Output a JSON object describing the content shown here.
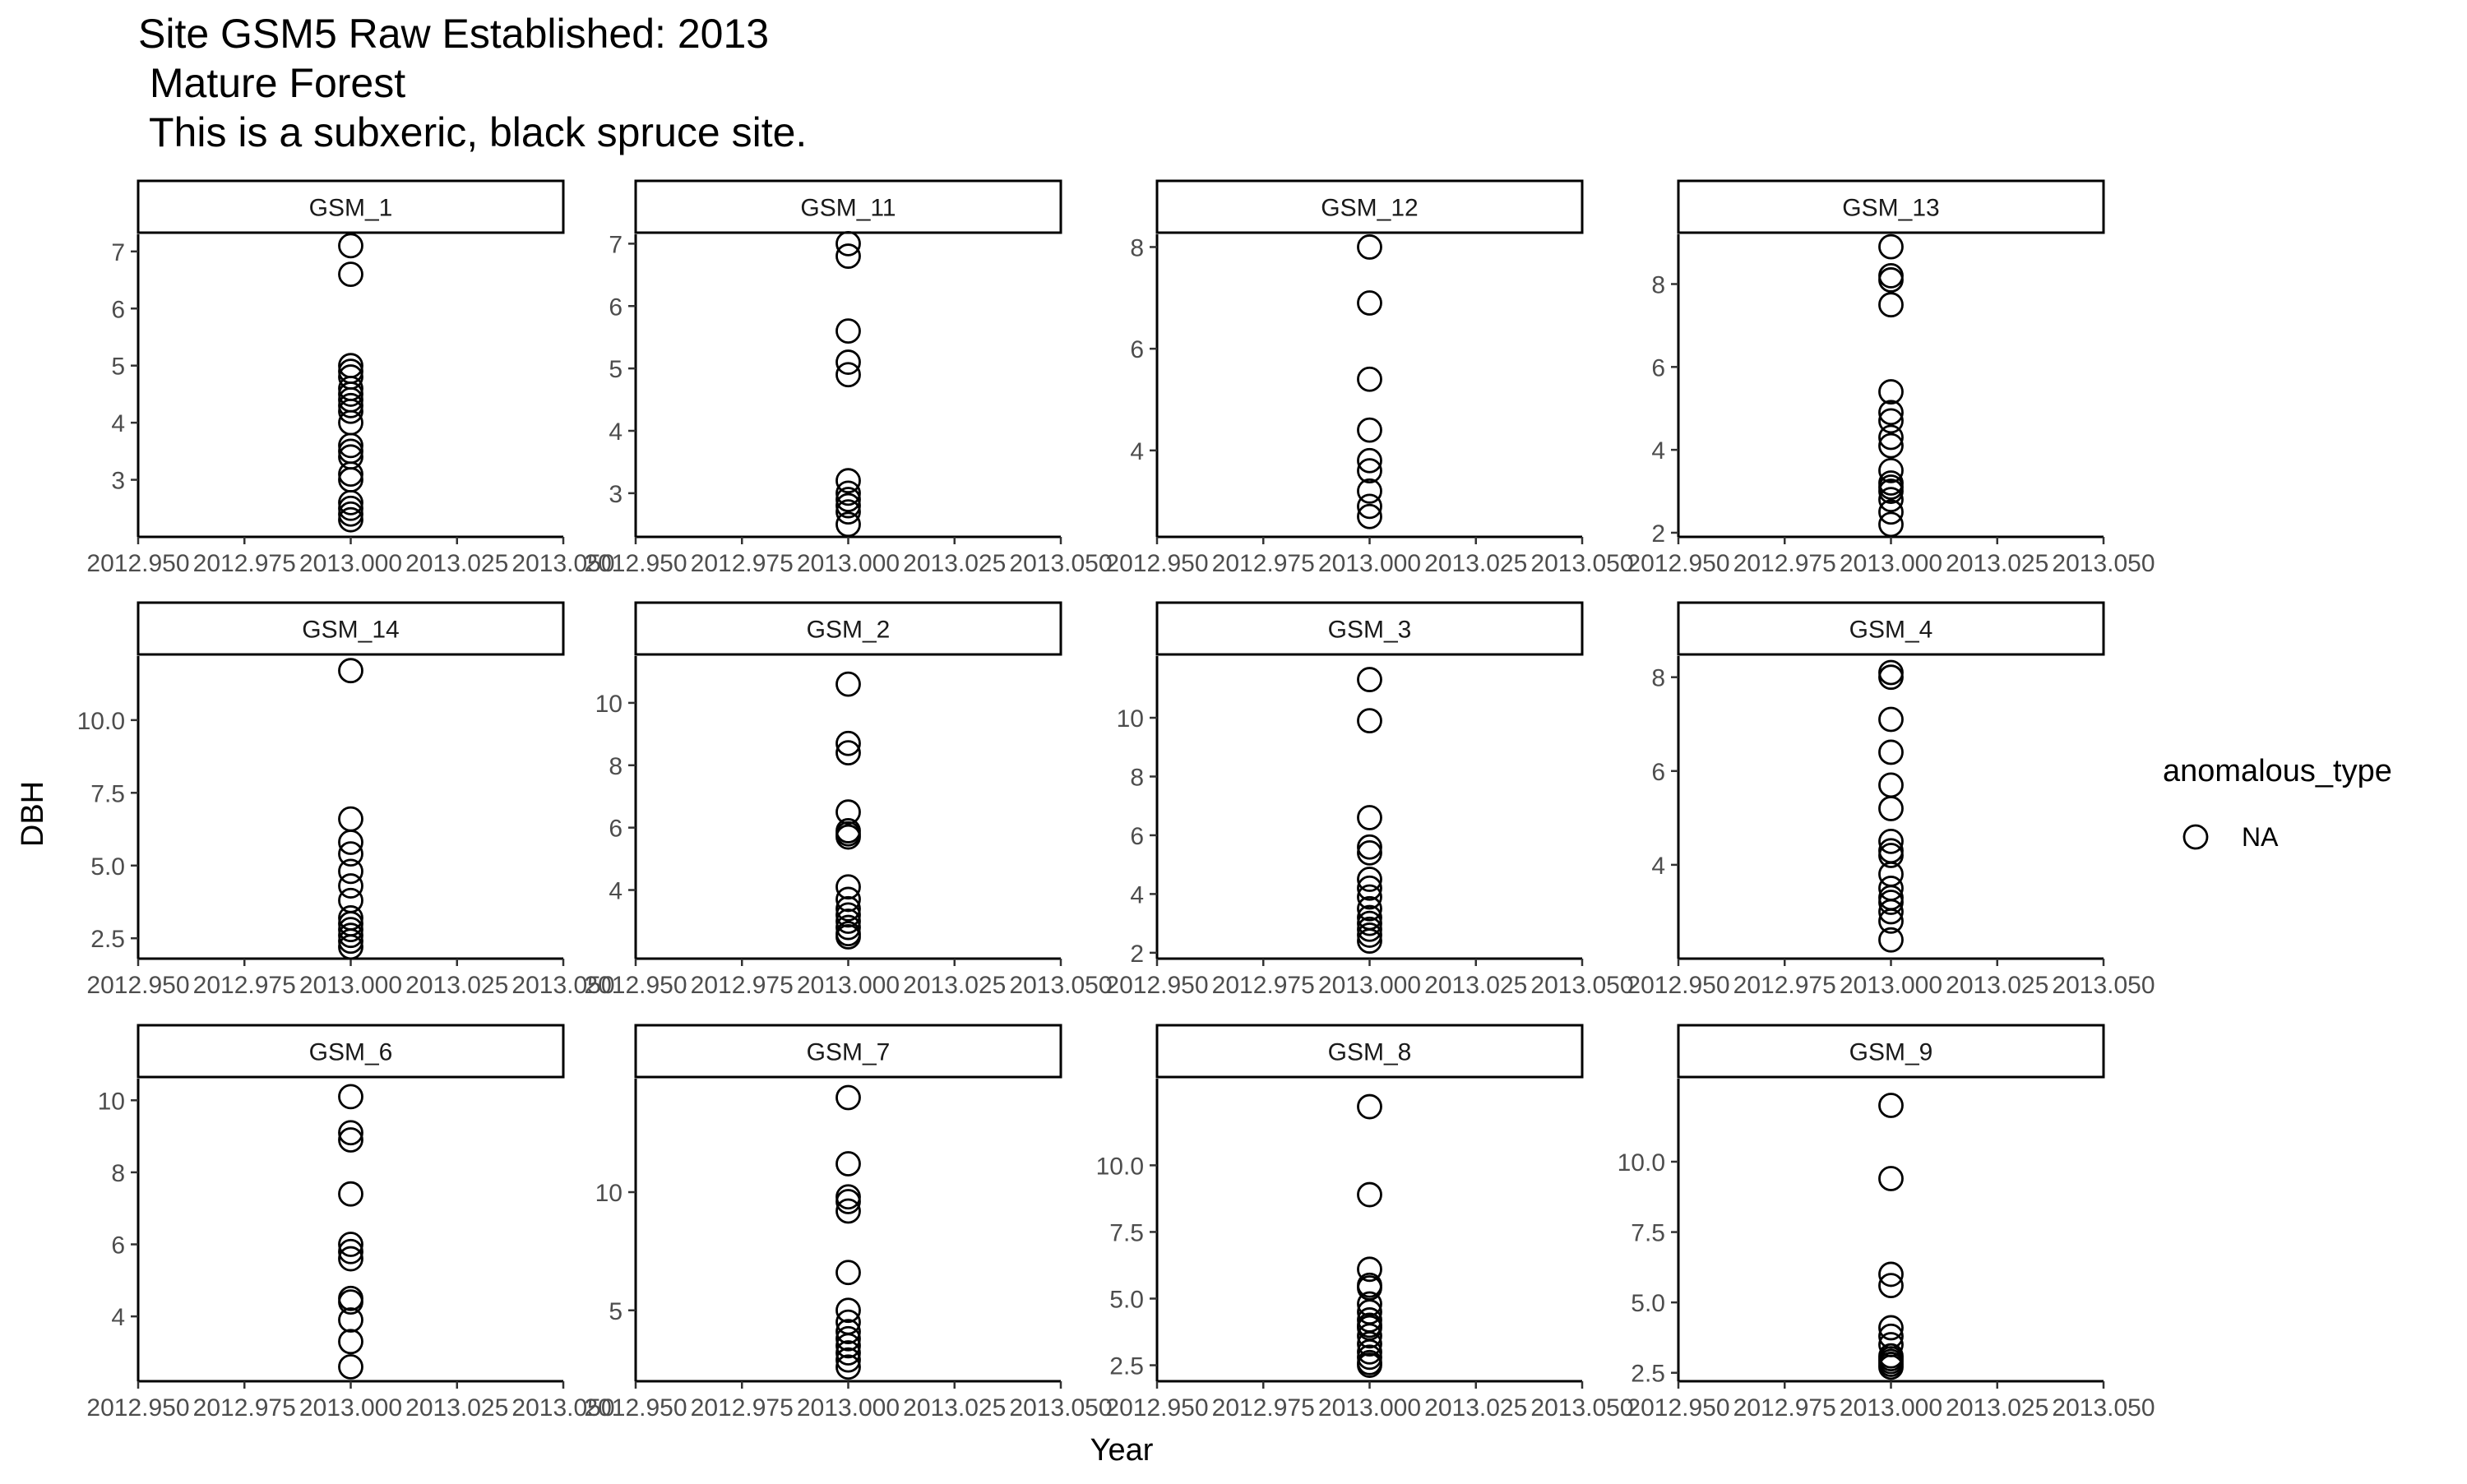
{
  "chart_data": {
    "type": "scatter",
    "title": "Site GSM5 Raw Established: 2013\n Mature Forest\n This is a subxeric, black spruce site.",
    "xlabel": "Year",
    "ylabel": "DBH",
    "grid": false,
    "legend": {
      "title": "anomalous_type",
      "entries": [
        "NA"
      ],
      "placement": "right"
    },
    "x_ticks": [
      "2012.950",
      "2012.975",
      "2013.000",
      "2013.025",
      "2013.050"
    ],
    "xlim": [
      2012.95,
      2013.05
    ],
    "panels": [
      {
        "name": "GSM_1",
        "ylim": [
          2.0,
          7.3
        ],
        "yticks": [
          3,
          4,
          5,
          6,
          7
        ],
        "ytick_labels": [
          "3",
          "4",
          "5",
          "6",
          "7"
        ],
        "x": 2013.0,
        "y": [
          7.1,
          6.6,
          5.0,
          4.9,
          4.8,
          4.6,
          4.5,
          4.4,
          4.3,
          4.2,
          4.0,
          3.6,
          3.5,
          3.4,
          3.1,
          3.0,
          2.6,
          2.5,
          2.4,
          2.3
        ]
      },
      {
        "name": "GSM_11",
        "ylim": [
          2.3,
          7.15
        ],
        "yticks": [
          3,
          4,
          5,
          6,
          7
        ],
        "ytick_labels": [
          "3",
          "4",
          "5",
          "6",
          "7"
        ],
        "x": 2013.0,
        "y": [
          7.0,
          6.8,
          5.6,
          5.1,
          4.9,
          3.2,
          3.0,
          2.9,
          2.8,
          2.7,
          2.5
        ]
      },
      {
        "name": "GSM_12",
        "ylim": [
          2.3,
          8.25
        ],
        "yticks": [
          4,
          6,
          8
        ],
        "ytick_labels": [
          "4",
          "6",
          "8"
        ],
        "x": 2013.0,
        "y": [
          8.0,
          6.9,
          5.4,
          4.4,
          3.8,
          3.6,
          3.2,
          2.9,
          2.7
        ]
      },
      {
        "name": "GSM_13",
        "ylim": [
          1.9,
          9.2
        ],
        "yticks": [
          2,
          4,
          6,
          8
        ],
        "ytick_labels": [
          "2",
          "4",
          "6",
          "8"
        ],
        "x": 2013.0,
        "y": [
          8.9,
          8.2,
          8.1,
          7.5,
          5.4,
          4.9,
          4.7,
          4.3,
          4.1,
          3.5,
          3.2,
          3.1,
          3.0,
          2.8,
          2.5,
          2.2
        ]
      },
      {
        "name": "GSM_14",
        "ylim": [
          1.8,
          12.2
        ],
        "yticks": [
          2.5,
          5.0,
          7.5,
          10.0
        ],
        "ytick_labels": [
          "2.5",
          "5.0",
          "7.5",
          "10.0"
        ],
        "x": 2013.0,
        "y": [
          11.7,
          6.6,
          5.8,
          5.4,
          4.8,
          4.3,
          3.8,
          3.2,
          3.0,
          2.8,
          2.6,
          2.4,
          2.2
        ]
      },
      {
        "name": "GSM_2",
        "ylim": [
          1.8,
          11.5
        ],
        "yticks": [
          4,
          6,
          8,
          10
        ],
        "ytick_labels": [
          "4",
          "6",
          "8",
          "10"
        ],
        "x": 2013.0,
        "y": [
          10.6,
          8.7,
          8.4,
          6.5,
          5.9,
          5.8,
          5.7,
          4.1,
          3.7,
          3.4,
          3.2,
          3.0,
          2.8,
          2.6,
          2.5
        ]
      },
      {
        "name": "GSM_3",
        "ylim": [
          1.8,
          12.1
        ],
        "yticks": [
          2,
          4,
          6,
          8,
          10
        ],
        "ytick_labels": [
          "2",
          "4",
          "6",
          "8",
          "10"
        ],
        "x": 2013.0,
        "y": [
          11.3,
          9.9,
          6.6,
          5.6,
          5.4,
          4.5,
          4.2,
          3.9,
          3.5,
          3.2,
          3.0,
          2.8,
          2.6,
          2.4
        ]
      },
      {
        "name": "GSM_4",
        "ylim": [
          2.0,
          8.45
        ],
        "yticks": [
          4,
          6,
          8
        ],
        "ytick_labels": [
          "4",
          "6",
          "8"
        ],
        "x": 2013.0,
        "y": [
          8.1,
          8.0,
          7.1,
          6.4,
          5.7,
          5.2,
          4.5,
          4.3,
          4.2,
          3.8,
          3.5,
          3.3,
          3.2,
          3.0,
          2.8,
          2.4
        ]
      },
      {
        "name": "GSM_6",
        "ylim": [
          2.2,
          10.6
        ],
        "yticks": [
          4,
          6,
          8,
          10
        ],
        "ytick_labels": [
          "4",
          "6",
          "8",
          "10"
        ],
        "x": 2013.0,
        "y": [
          10.1,
          9.1,
          8.9,
          7.4,
          6.0,
          5.8,
          5.6,
          4.5,
          4.4,
          3.9,
          3.3,
          2.6
        ]
      },
      {
        "name": "GSM_7",
        "ylim": [
          2.0,
          14.8
        ],
        "yticks": [
          5,
          10
        ],
        "ytick_labels": [
          "5",
          "10"
        ],
        "x": 2013.0,
        "y": [
          14.0,
          11.2,
          9.8,
          9.6,
          9.2,
          6.6,
          5.0,
          4.5,
          4.1,
          3.8,
          3.5,
          3.2,
          2.9,
          2.6
        ]
      },
      {
        "name": "GSM_8",
        "ylim": [
          1.9,
          13.25
        ],
        "yticks": [
          2.5,
          5.0,
          7.5,
          10.0
        ],
        "ytick_labels": [
          "2.5",
          "5.0",
          "7.5",
          "10.0"
        ],
        "x": 2013.0,
        "y": [
          12.2,
          8.9,
          6.1,
          5.5,
          5.4,
          4.8,
          4.5,
          4.2,
          4.0,
          3.9,
          3.6,
          3.3,
          3.0,
          2.8,
          2.6,
          2.5
        ]
      },
      {
        "name": "GSM_9",
        "ylim": [
          2.2,
          12.95
        ],
        "yticks": [
          2.5,
          5.0,
          7.5,
          10.0
        ],
        "ytick_labels": [
          "2.5",
          "5.0",
          "7.5",
          "10.0"
        ],
        "x": 2013.0,
        "y": [
          12.0,
          9.4,
          6.0,
          5.6,
          4.1,
          3.8,
          3.5,
          3.1,
          3.0,
          2.9,
          2.8,
          2.7
        ]
      }
    ]
  }
}
